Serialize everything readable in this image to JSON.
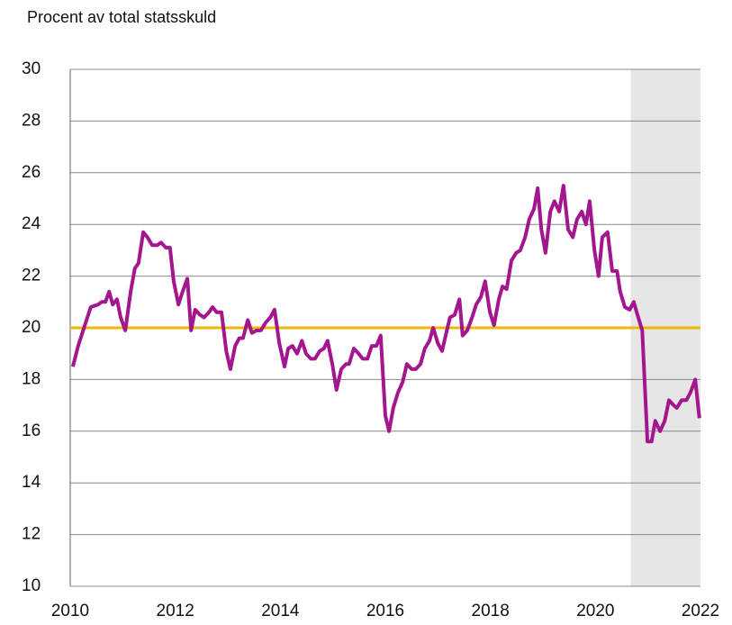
{
  "chart_data": {
    "type": "line",
    "title": "Procent av total statsskuld",
    "x": [
      2010.05,
      2010.15,
      2010.31,
      2010.39,
      2010.53,
      2010.6,
      2010.67,
      2010.74,
      2010.81,
      2010.89,
      2010.96,
      2011.05,
      2011.15,
      2011.23,
      2011.3,
      2011.39,
      2011.47,
      2011.56,
      2011.66,
      2011.73,
      2011.82,
      2011.9,
      2011.97,
      2012.06,
      2012.14,
      2012.23,
      2012.3,
      2012.38,
      2012.47,
      2012.55,
      2012.64,
      2012.71,
      2012.79,
      2012.88,
      2012.97,
      2013.05,
      2013.14,
      2013.22,
      2013.29,
      2013.38,
      2013.46,
      2013.55,
      2013.63,
      2013.72,
      2013.81,
      2013.89,
      2013.98,
      2014.08,
      2014.15,
      2014.23,
      2014.32,
      2014.41,
      2014.49,
      2014.58,
      2014.66,
      2014.75,
      2014.83,
      2014.9,
      2014.99,
      2015.07,
      2015.16,
      2015.25,
      2015.31,
      2015.4,
      2015.49,
      2015.57,
      2015.66,
      2015.74,
      2015.83,
      2015.91,
      2016.0,
      2016.07,
      2016.15,
      2016.24,
      2016.33,
      2016.41,
      2016.5,
      2016.58,
      2016.67,
      2016.75,
      2016.84,
      2016.91,
      2017.0,
      2017.08,
      2017.17,
      2017.23,
      2017.32,
      2017.41,
      2017.47,
      2017.56,
      2017.65,
      2017.73,
      2017.82,
      2017.9,
      2017.99,
      2018.07,
      2018.16,
      2018.23,
      2018.31,
      2018.4,
      2018.49,
      2018.57,
      2018.66,
      2018.74,
      2018.83,
      2018.9,
      2018.97,
      2019.05,
      2019.14,
      2019.22,
      2019.31,
      2019.39,
      2019.48,
      2019.57,
      2019.65,
      2019.74,
      2019.82,
      2019.89,
      2019.98,
      2020.06,
      2020.13,
      2020.23,
      2020.32,
      2020.41,
      2020.47,
      2020.56,
      2020.65,
      2020.73,
      2020.8,
      2020.89,
      2020.99,
      2021.07,
      2021.14,
      2021.23,
      2021.32,
      2021.4,
      2021.49,
      2021.55,
      2021.64,
      2021.73,
      2021.81,
      2021.9,
      2021.98
    ],
    "series": [
      {
        "color": "#a3168e",
        "values": [
          18.5,
          19.3,
          20.3,
          20.8,
          20.9,
          21.0,
          21.0,
          21.4,
          20.9,
          21.1,
          20.4,
          19.9,
          21.4,
          22.3,
          22.5,
          23.7,
          23.5,
          23.2,
          23.2,
          23.3,
          23.1,
          23.1,
          21.8,
          20.9,
          21.4,
          21.9,
          19.9,
          20.7,
          20.5,
          20.4,
          20.6,
          20.8,
          20.6,
          20.6,
          19.1,
          18.4,
          19.3,
          19.6,
          19.6,
          20.3,
          19.8,
          19.9,
          19.9,
          20.2,
          20.4,
          20.7,
          19.4,
          18.5,
          19.2,
          19.3,
          19.0,
          19.5,
          19.0,
          18.8,
          18.8,
          19.1,
          19.2,
          19.5,
          18.6,
          17.6,
          18.4,
          18.6,
          18.6,
          19.2,
          19.0,
          18.8,
          18.8,
          19.3,
          19.3,
          19.7,
          16.6,
          16.0,
          16.9,
          17.5,
          17.9,
          18.6,
          18.4,
          18.4,
          18.6,
          19.2,
          19.5,
          20.0,
          19.4,
          19.1,
          19.9,
          20.4,
          20.5,
          21.1,
          19.7,
          19.9,
          20.4,
          20.9,
          21.2,
          21.8,
          20.6,
          20.1,
          21.1,
          21.6,
          21.5,
          22.6,
          22.9,
          23.0,
          23.5,
          24.2,
          24.6,
          25.4,
          23.8,
          22.9,
          24.5,
          24.9,
          24.5,
          25.5,
          23.8,
          23.5,
          24.2,
          24.5,
          24.0,
          24.9,
          23.0,
          22.0,
          23.5,
          23.7,
          22.2,
          22.2,
          21.4,
          20.8,
          20.7,
          21.0,
          20.5,
          19.9,
          15.6,
          15.6,
          16.4,
          16.0,
          16.4,
          17.2,
          17.0,
          16.9,
          17.2,
          17.2,
          17.5,
          18.0,
          16.5
        ]
      }
    ],
    "hline": {
      "value": 20,
      "color": "#f2b600"
    },
    "shaded_xrange": [
      2020.67,
      2022
    ],
    "shade_color": "#e6e6e6",
    "xlim": [
      2010,
      2022
    ],
    "xticks": [
      2010,
      2012,
      2014,
      2016,
      2018,
      2020,
      2022
    ],
    "ylim": [
      10,
      30
    ],
    "yticks": [
      10,
      12,
      14,
      16,
      18,
      20,
      22,
      24,
      26,
      28,
      30
    ],
    "grid": true
  }
}
